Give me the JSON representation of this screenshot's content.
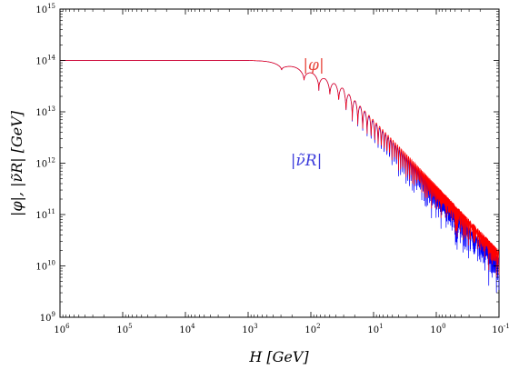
{
  "chart_data": {
    "type": "line",
    "xlabel": "H [GeV]",
    "ylabel": "|φ|, |ν̃R| [GeV]",
    "x_scale": "log",
    "y_scale": "log",
    "x_reversed": true,
    "xlim": [
      1000000,
      0.1
    ],
    "ylim": [
      1000000000,
      1000000000000000
    ],
    "x_tick_values": [
      1000000,
      100000,
      10000,
      1000,
      100,
      10,
      1,
      0.1
    ],
    "x_tick_labels": [
      {
        "base": "10",
        "exp": "6"
      },
      {
        "base": "10",
        "exp": "5"
      },
      {
        "base": "10",
        "exp": "4"
      },
      {
        "base": "10",
        "exp": "3"
      },
      {
        "base": "10",
        "exp": "2"
      },
      {
        "base": "10",
        "exp": "1"
      },
      {
        "base": "10",
        "exp": "0"
      },
      {
        "base": "10",
        "exp": "-1"
      }
    ],
    "y_tick_values": [
      1000000000,
      10000000000,
      100000000000,
      1000000000000,
      10000000000000,
      100000000000000,
      1000000000000000
    ],
    "y_tick_labels": [
      {
        "base": "10",
        "exp": "9"
      },
      {
        "base": "10",
        "exp": "10"
      },
      {
        "base": "10",
        "exp": "11"
      },
      {
        "base": "10",
        "exp": "12"
      },
      {
        "base": "10",
        "exp": "13"
      },
      {
        "base": "10",
        "exp": "14"
      },
      {
        "base": "10",
        "exp": "15"
      }
    ],
    "grid": false,
    "series": [
      {
        "name": "|φ|",
        "color": "#ff0000",
        "envelope": {
          "plateau_value": 100000000000000,
          "plateau_until_H": 1000,
          "first_dip_H": 55,
          "first_dip_value": 35000000000000,
          "first_peak_H": 30,
          "first_peak_value": 28000000000000,
          "upper_envelope_end_H": 0.1,
          "upper_envelope_end_value": 20000000000,
          "lower_envelope_end_value": 3500000000
        }
      },
      {
        "name": "|ν̃R|",
        "color": "#0000ff",
        "envelope": {
          "plateau_value": 100000000000000,
          "plateau_until_H": 1000,
          "first_dip_H": 55,
          "first_dip_value": 30000000000000,
          "upper_envelope_end_H": 0.1,
          "upper_envelope_end_value": 14000000000,
          "lower_envelope_end_value": 1500000000
        }
      }
    ],
    "series_label_positions": [
      "above-curve",
      "below-curve"
    ]
  },
  "colors": {
    "phi": "#ff0000",
    "nuR": "#0000ff",
    "phi_label": "#e8493f",
    "nuR_label": "#3d3ddc"
  }
}
